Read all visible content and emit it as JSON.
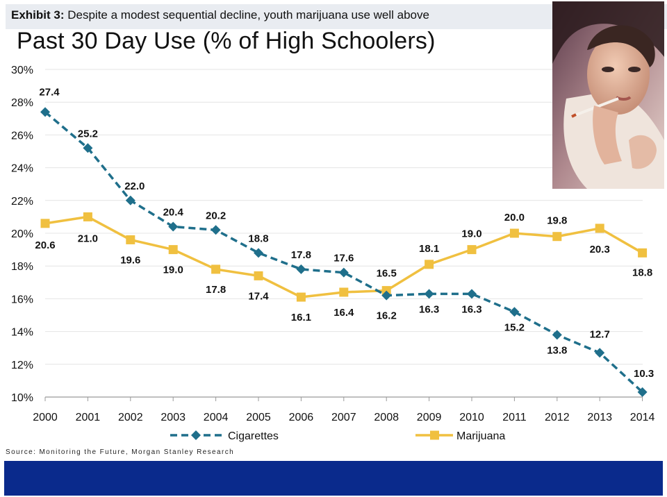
{
  "exhibit": {
    "label": "Exhibit 3:",
    "text": "Despite a modest sequential decline, youth marijuana use well above"
  },
  "source": "Source: Monitoring the Future, Morgan Stanley Research",
  "photo": {
    "description_icon": "woman-smoking-photo"
  },
  "colors": {
    "cigarettes": "#1f6f8b",
    "marijuana": "#f0c040",
    "footer": "#0a2a8c",
    "grid": "#e4e4e4"
  },
  "chart_data": {
    "type": "line",
    "title": "Past 30 Day Use (% of High Schoolers)",
    "xlabel": "",
    "ylabel": "",
    "ylim": [
      10,
      30
    ],
    "yticks": [
      10,
      12,
      14,
      16,
      18,
      20,
      22,
      24,
      26,
      28,
      30
    ],
    "ytick_labels": [
      "10%",
      "12%",
      "14%",
      "16%",
      "18%",
      "20%",
      "22%",
      "24%",
      "26%",
      "28%",
      "30%"
    ],
    "categories": [
      "2000",
      "2001",
      "2002",
      "2003",
      "2004",
      "2005",
      "2006",
      "2007",
      "2008",
      "2009",
      "2010",
      "2011",
      "2012",
      "2013",
      "2014"
    ],
    "grid": true,
    "legend_position": "bottom",
    "series": [
      {
        "name": "Cigarettes",
        "style": "dashed-diamond",
        "values": [
          27.4,
          25.2,
          22.0,
          20.4,
          20.2,
          18.8,
          17.8,
          17.6,
          16.2,
          16.3,
          16.3,
          15.2,
          13.8,
          12.7,
          10.3
        ],
        "labels": [
          "27.4",
          "25.2",
          "22.0",
          "20.4",
          "20.2",
          "18.8",
          "17.8",
          "17.6",
          "16.2",
          "16.3",
          "16.3",
          "15.2",
          "13.8",
          "12.7",
          "10.3"
        ]
      },
      {
        "name": "Marijuana",
        "style": "solid-square",
        "values": [
          20.6,
          21.0,
          19.6,
          19.0,
          17.8,
          17.4,
          16.1,
          16.4,
          16.5,
          18.1,
          19.0,
          20.0,
          19.8,
          20.3,
          18.8
        ],
        "labels": [
          "20.6",
          "21.0",
          "19.6",
          "19.0",
          "17.8",
          "17.4",
          "16.1",
          "16.4",
          "16.5",
          "18.1",
          "19.0",
          "20.0",
          "19.8",
          "20.3",
          "18.8"
        ]
      }
    ]
  }
}
